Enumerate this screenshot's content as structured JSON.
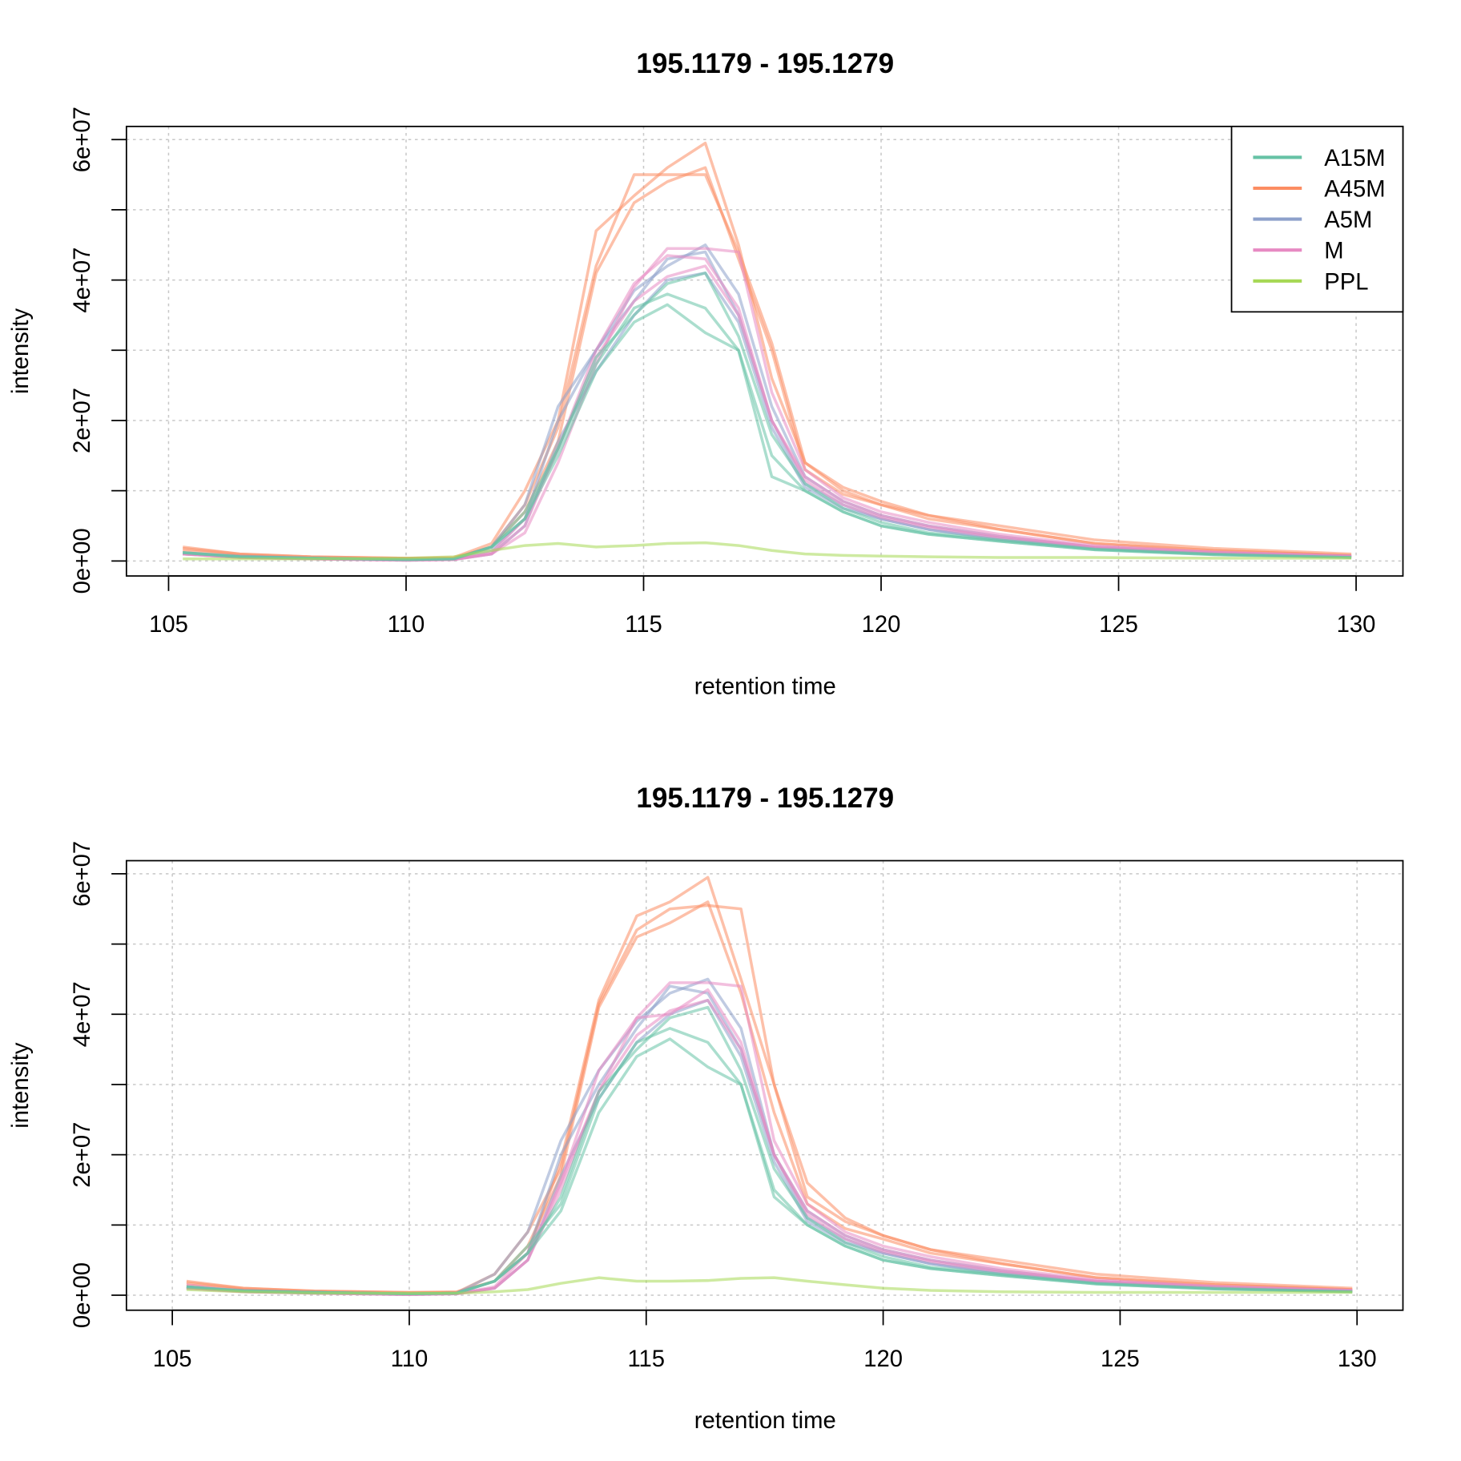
{
  "legend": {
    "entries": [
      {
        "label": "A15M",
        "color": "#66c2a5"
      },
      {
        "label": "A45M",
        "color": "#fc8d62"
      },
      {
        "label": "A5M",
        "color": "#8da0cb"
      },
      {
        "label": "M",
        "color": "#e78ac3"
      },
      {
        "label": "PPL",
        "color": "#a6d854"
      }
    ]
  },
  "chart_data": [
    {
      "type": "line",
      "title": "195.1179 - 195.1279",
      "xlabel": "retention time",
      "ylabel": "intensity",
      "xlim": [
        105,
        130
      ],
      "ylim": [
        0,
        60000000.0
      ],
      "xticks": [
        "105",
        "110",
        "115",
        "120",
        "125",
        "130"
      ],
      "yticks": [
        "0e+00",
        "2e+07",
        "4e+07",
        "6e+07"
      ],
      "grid": true,
      "legend_position": "top-right",
      "y_unit": 10000000.0,
      "x": [
        105.3,
        106.5,
        108,
        110,
        111,
        111.8,
        112.5,
        113.2,
        114,
        114.8,
        115.5,
        116.3,
        117,
        117.7,
        118.4,
        119.2,
        120,
        121,
        122.5,
        124.5,
        127,
        129.9
      ],
      "series": [
        {
          "name": "A45M",
          "values": [
            0.18,
            0.1,
            0.06,
            0.04,
            0.05,
            0.25,
            1.0,
            2.0,
            4.7,
            5.2,
            5.6,
            5.95,
            4.5,
            2.6,
            1.4,
            1.0,
            0.8,
            0.65,
            0.5,
            0.3,
            0.18,
            0.1
          ]
        },
        {
          "name": "A45M",
          "values": [
            0.2,
            0.1,
            0.06,
            0.04,
            0.04,
            0.2,
            0.8,
            1.9,
            4.2,
            5.5,
            5.5,
            5.5,
            4.4,
            3.1,
            1.4,
            1.05,
            0.85,
            0.65,
            0.45,
            0.25,
            0.15,
            0.08
          ]
        },
        {
          "name": "A45M",
          "values": [
            0.15,
            0.08,
            0.05,
            0.03,
            0.04,
            0.2,
            0.7,
            1.7,
            4.1,
            5.1,
            5.4,
            5.6,
            4.3,
            3.0,
            1.3,
            0.95,
            0.8,
            0.6,
            0.45,
            0.25,
            0.15,
            0.08
          ]
        },
        {
          "name": "A5M",
          "values": [
            0.12,
            0.07,
            0.04,
            0.02,
            0.03,
            0.2,
            0.8,
            2.2,
            3.0,
            3.85,
            4.2,
            4.5,
            3.8,
            2.2,
            1.2,
            0.85,
            0.65,
            0.5,
            0.35,
            0.2,
            0.12,
            0.07
          ]
        },
        {
          "name": "A5M",
          "values": [
            0.1,
            0.06,
            0.04,
            0.02,
            0.03,
            0.15,
            0.6,
            2.0,
            3.0,
            3.7,
            4.3,
            4.4,
            3.5,
            2.0,
            1.1,
            0.8,
            0.6,
            0.45,
            0.32,
            0.18,
            0.1,
            0.06
          ]
        },
        {
          "name": "A5M",
          "values": [
            0.1,
            0.06,
            0.03,
            0.02,
            0.02,
            0.1,
            0.5,
            1.7,
            2.7,
            3.5,
            4.0,
            4.1,
            3.4,
            1.9,
            1.05,
            0.75,
            0.6,
            0.45,
            0.3,
            0.18,
            0.1,
            0.06
          ]
        },
        {
          "name": "M",
          "values": [
            0.1,
            0.05,
            0.03,
            0.01,
            0.02,
            0.1,
            0.4,
            1.4,
            2.8,
            3.9,
            4.45,
            4.45,
            4.4,
            2.4,
            1.3,
            0.9,
            0.7,
            0.55,
            0.38,
            0.22,
            0.13,
            0.07
          ]
        },
        {
          "name": "M",
          "values": [
            0.1,
            0.05,
            0.03,
            0.01,
            0.02,
            0.12,
            0.6,
            1.6,
            3.0,
            3.95,
            4.35,
            4.3,
            3.6,
            2.0,
            1.2,
            0.85,
            0.65,
            0.5,
            0.35,
            0.2,
            0.12,
            0.07
          ]
        },
        {
          "name": "M",
          "values": [
            0.1,
            0.05,
            0.03,
            0.01,
            0.02,
            0.1,
            0.5,
            1.6,
            2.9,
            3.7,
            4.05,
            4.2,
            3.5,
            2.0,
            1.15,
            0.8,
            0.62,
            0.48,
            0.33,
            0.2,
            0.12,
            0.06
          ]
        },
        {
          "name": "A15M",
          "values": [
            0.12,
            0.06,
            0.04,
            0.02,
            0.03,
            0.2,
            0.7,
            1.6,
            2.8,
            3.6,
            3.8,
            3.6,
            3.0,
            1.5,
            1.0,
            0.7,
            0.5,
            0.38,
            0.28,
            0.16,
            0.09,
            0.05
          ]
        },
        {
          "name": "A15M",
          "values": [
            0.12,
            0.06,
            0.04,
            0.02,
            0.03,
            0.2,
            0.6,
            1.5,
            2.7,
            3.4,
            3.65,
            3.25,
            3.0,
            1.2,
            1.0,
            0.7,
            0.5,
            0.38,
            0.28,
            0.16,
            0.09,
            0.05
          ]
        },
        {
          "name": "A15M",
          "values": [
            0.12,
            0.06,
            0.04,
            0.02,
            0.03,
            0.2,
            0.6,
            1.6,
            2.9,
            3.5,
            3.95,
            4.1,
            3.2,
            1.8,
            1.1,
            0.75,
            0.55,
            0.4,
            0.3,
            0.17,
            0.1,
            0.05
          ]
        },
        {
          "name": "PPL",
          "values": [
            0.03,
            0.03,
            0.03,
            0.04,
            0.06,
            0.15,
            0.22,
            0.25,
            0.2,
            0.22,
            0.25,
            0.26,
            0.22,
            0.15,
            0.1,
            0.08,
            0.07,
            0.06,
            0.05,
            0.05,
            0.04,
            0.04
          ]
        }
      ]
    },
    {
      "type": "line",
      "title": "195.1179 - 195.1279",
      "xlabel": "retention time",
      "ylabel": "intensity",
      "xlim": [
        105,
        130
      ],
      "ylim": [
        0,
        60000000.0
      ],
      "xticks": [
        "105",
        "110",
        "115",
        "120",
        "125",
        "130"
      ],
      "yticks": [
        "0e+00",
        "2e+07",
        "4e+07",
        "6e+07"
      ],
      "grid": true,
      "y_unit": 10000000.0,
      "x": [
        105.3,
        106.5,
        108,
        110,
        111,
        111.8,
        112.5,
        113.2,
        114,
        114.8,
        115.5,
        116.3,
        117,
        117.7,
        118.4,
        119.2,
        120,
        121,
        122.5,
        124.5,
        127,
        129.9
      ],
      "series": [
        {
          "name": "A45M",
          "values": [
            0.18,
            0.1,
            0.06,
            0.04,
            0.05,
            0.2,
            0.6,
            1.9,
            4.2,
            5.4,
            5.6,
            5.95,
            4.5,
            3.0,
            1.6,
            1.1,
            0.85,
            0.65,
            0.5,
            0.3,
            0.18,
            0.1
          ]
        },
        {
          "name": "A45M",
          "values": [
            0.2,
            0.1,
            0.06,
            0.04,
            0.04,
            0.3,
            0.9,
            1.8,
            4.15,
            5.2,
            5.5,
            5.55,
            5.5,
            3.0,
            1.4,
            1.05,
            0.85,
            0.65,
            0.45,
            0.25,
            0.15,
            0.08
          ]
        },
        {
          "name": "A45M",
          "values": [
            0.15,
            0.08,
            0.05,
            0.03,
            0.04,
            0.2,
            0.7,
            1.7,
            4.1,
            5.1,
            5.3,
            5.6,
            4.3,
            2.6,
            1.3,
            0.95,
            0.8,
            0.6,
            0.45,
            0.25,
            0.15,
            0.08
          ]
        },
        {
          "name": "A5M",
          "values": [
            0.12,
            0.07,
            0.04,
            0.02,
            0.03,
            0.3,
            0.9,
            2.2,
            3.2,
            3.9,
            4.3,
            4.5,
            3.8,
            2.0,
            1.2,
            0.85,
            0.65,
            0.5,
            0.35,
            0.2,
            0.12,
            0.07
          ]
        },
        {
          "name": "A5M",
          "values": [
            0.1,
            0.06,
            0.04,
            0.02,
            0.03,
            0.2,
            0.6,
            2.0,
            3.0,
            3.8,
            4.4,
            4.3,
            3.5,
            2.0,
            1.1,
            0.8,
            0.6,
            0.45,
            0.32,
            0.18,
            0.1,
            0.06
          ]
        },
        {
          "name": "A5M",
          "values": [
            0.1,
            0.06,
            0.03,
            0.02,
            0.02,
            0.1,
            0.5,
            1.7,
            2.8,
            3.6,
            4.0,
            4.2,
            3.4,
            1.9,
            1.05,
            0.75,
            0.6,
            0.45,
            0.3,
            0.18,
            0.1,
            0.06
          ]
        },
        {
          "name": "M",
          "values": [
            0.15,
            0.05,
            0.03,
            0.01,
            0.02,
            0.1,
            0.5,
            1.5,
            2.9,
            3.95,
            4.45,
            4.45,
            4.4,
            2.2,
            1.3,
            0.9,
            0.7,
            0.55,
            0.38,
            0.22,
            0.13,
            0.07
          ]
        },
        {
          "name": "M",
          "values": [
            0.1,
            0.05,
            0.03,
            0.01,
            0.02,
            0.12,
            0.6,
            1.6,
            3.2,
            3.95,
            4.0,
            4.35,
            3.6,
            2.0,
            1.2,
            0.85,
            0.65,
            0.5,
            0.35,
            0.2,
            0.12,
            0.07
          ]
        },
        {
          "name": "M",
          "values": [
            0.1,
            0.05,
            0.03,
            0.01,
            0.02,
            0.1,
            0.5,
            1.6,
            2.9,
            3.7,
            4.05,
            4.2,
            3.5,
            2.0,
            1.15,
            0.8,
            0.62,
            0.48,
            0.33,
            0.2,
            0.12,
            0.06
          ]
        },
        {
          "name": "A15M",
          "values": [
            0.12,
            0.06,
            0.04,
            0.02,
            0.03,
            0.2,
            0.7,
            1.3,
            2.8,
            3.6,
            3.8,
            3.6,
            3.0,
            1.5,
            1.0,
            0.7,
            0.5,
            0.38,
            0.28,
            0.16,
            0.09,
            0.05
          ]
        },
        {
          "name": "A15M",
          "values": [
            0.12,
            0.06,
            0.04,
            0.02,
            0.03,
            0.2,
            0.6,
            1.2,
            2.6,
            3.4,
            3.65,
            3.25,
            3.0,
            1.4,
            1.0,
            0.7,
            0.5,
            0.38,
            0.28,
            0.16,
            0.09,
            0.05
          ]
        },
        {
          "name": "A15M",
          "values": [
            0.12,
            0.06,
            0.04,
            0.02,
            0.03,
            0.2,
            0.6,
            1.4,
            2.9,
            3.5,
            3.95,
            4.1,
            3.2,
            1.8,
            1.1,
            0.75,
            0.55,
            0.4,
            0.3,
            0.17,
            0.1,
            0.05
          ]
        },
        {
          "name": "PPL",
          "values": [
            0.08,
            0.05,
            0.03,
            0.03,
            0.03,
            0.05,
            0.08,
            0.17,
            0.25,
            0.2,
            0.2,
            0.21,
            0.24,
            0.25,
            0.2,
            0.15,
            0.1,
            0.07,
            0.05,
            0.04,
            0.04,
            0.04
          ]
        }
      ]
    }
  ]
}
